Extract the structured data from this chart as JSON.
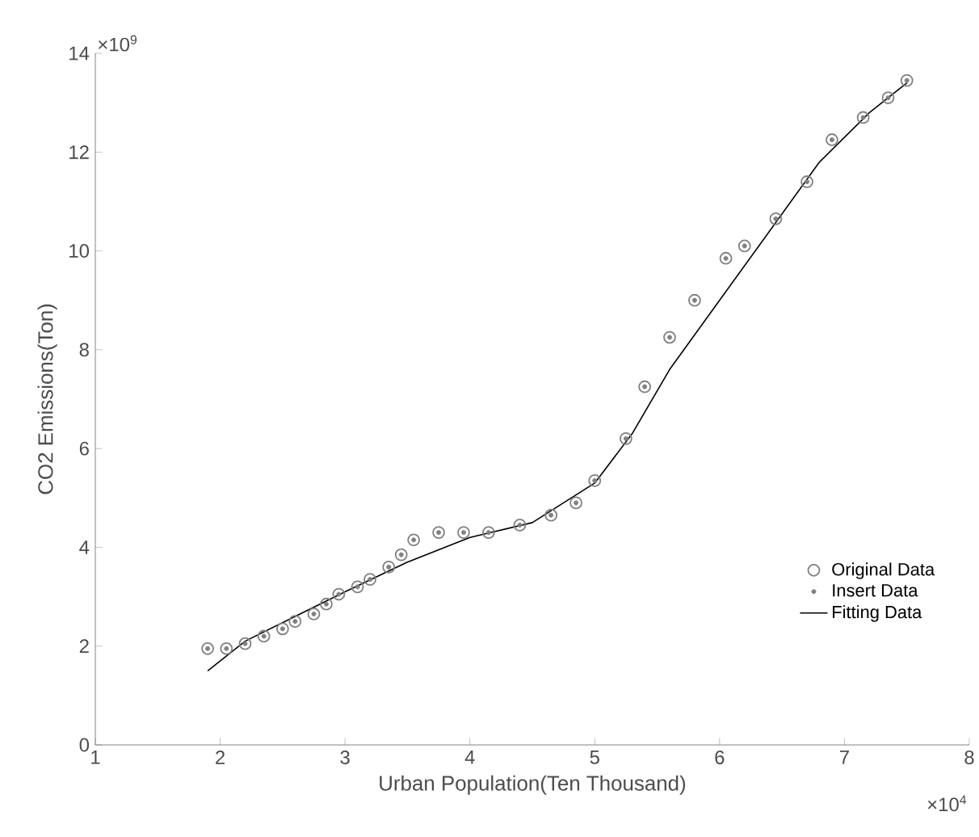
{
  "chart_data": {
    "type": "line",
    "xlabel": "Urban Population(Ten Thousand)",
    "ylabel": "CO2 Emissions(Ton)",
    "annotations": [
      "×10$^{9}$",
      "×10$^{4}$"
    ],
    "xlim": [
      1,
      8
    ],
    "xticks": [
      1,
      2,
      3,
      4,
      5,
      6,
      7,
      8
    ],
    "ylim": [
      0,
      14
    ],
    "yticks": [
      0,
      2,
      4,
      6,
      8,
      10,
      12,
      14
    ],
    "grid": false,
    "legend": "bottom right",
    "series": [
      {
        "name": "Original Data",
        "type": "scatter",
        "marker": "circle",
        "color": "#808080",
        "x": [
          1.9,
          2.05,
          2.2,
          2.35,
          2.5,
          2.6,
          2.75,
          2.85,
          2.95,
          3.1,
          3.2,
          3.35,
          3.45,
          3.55,
          3.75,
          3.95,
          4.15,
          4.4,
          4.65,
          4.85,
          5.0,
          5.25,
          5.4,
          5.6,
          5.8,
          6.05,
          6.2,
          6.45,
          6.7,
          6.9,
          7.15,
          7.35,
          7.5
        ],
        "values": [
          1.95,
          1.95,
          2.05,
          2.2,
          2.35,
          2.5,
          2.65,
          2.85,
          3.05,
          3.2,
          3.35,
          3.6,
          3.85,
          4.15,
          4.3,
          4.3,
          4.3,
          4.45,
          4.65,
          4.9,
          5.35,
          6.2,
          7.25,
          8.25,
          9.0,
          9.85,
          10.1,
          10.65,
          11.4,
          12.25,
          12.7,
          13.1,
          13.45
        ]
      },
      {
        "name": "Insert Data",
        "type": "scatter",
        "marker": "star",
        "color": "#808080",
        "x": [
          1.9,
          2.05,
          2.2,
          2.35,
          2.5,
          2.6,
          2.75,
          2.85,
          2.95,
          3.1,
          3.2,
          3.35,
          3.45,
          3.55,
          3.75,
          3.95,
          4.15,
          4.4,
          4.65,
          4.85,
          5.0,
          5.25,
          5.4,
          5.6,
          5.8,
          6.05,
          6.2,
          6.45,
          6.7,
          6.9,
          7.15,
          7.35,
          7.5
        ],
        "values": [
          1.95,
          1.95,
          2.05,
          2.2,
          2.35,
          2.5,
          2.65,
          2.85,
          3.05,
          3.2,
          3.35,
          3.6,
          3.85,
          4.15,
          4.3,
          4.3,
          4.3,
          4.45,
          4.65,
          4.9,
          5.35,
          6.2,
          7.25,
          8.25,
          9.0,
          9.85,
          10.1,
          10.65,
          11.4,
          12.25,
          12.7,
          13.1,
          13.45
        ]
      },
      {
        "name": "Fitting Data",
        "marker": "none",
        "line_style": "solid",
        "color": "#000000",
        "x": [
          1.9,
          2.2,
          2.6,
          3.0,
          3.5,
          4.0,
          4.5,
          5.0,
          5.3,
          5.6,
          6.0,
          6.4,
          6.8,
          7.2,
          7.5
        ],
        "values": [
          1.5,
          2.1,
          2.6,
          3.1,
          3.7,
          4.2,
          4.5,
          5.3,
          6.3,
          7.6,
          9.0,
          10.4,
          11.8,
          12.8,
          13.4
        ]
      }
    ]
  }
}
